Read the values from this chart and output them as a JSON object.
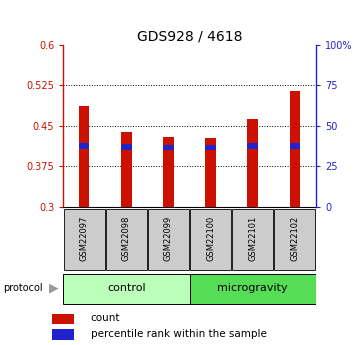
{
  "title": "GDS928 / 4618",
  "samples": [
    "GSM22097",
    "GSM22098",
    "GSM22099",
    "GSM22100",
    "GSM22101",
    "GSM22102"
  ],
  "red_values": [
    0.487,
    0.438,
    0.43,
    0.428,
    0.462,
    0.515
  ],
  "blue_values": [
    0.408,
    0.406,
    0.405,
    0.405,
    0.408,
    0.408
  ],
  "baseline": 0.3,
  "ylim_left": [
    0.3,
    0.6
  ],
  "ylim_right": [
    0,
    100
  ],
  "yticks_left": [
    0.3,
    0.375,
    0.45,
    0.525,
    0.6
  ],
  "ytick_labels_left": [
    "0.3",
    "0.375",
    "0.45",
    "0.525",
    "0.6"
  ],
  "yticks_right": [
    0,
    25,
    50,
    75,
    100
  ],
  "ytick_labels_right": [
    "0",
    "25",
    "50",
    "75",
    "100%"
  ],
  "bar_width": 0.25,
  "blue_bar_height": 0.01,
  "protocol_groups": [
    {
      "label": "control",
      "indices": [
        0,
        1,
        2
      ],
      "color": "#bbffbb"
    },
    {
      "label": "microgravity",
      "indices": [
        3,
        4,
        5
      ],
      "color": "#55dd55"
    }
  ],
  "red_color": "#cc1100",
  "blue_color": "#2222cc",
  "label_box_color": "#cccccc",
  "protocol_label": "protocol",
  "legend_entries": [
    "count",
    "percentile rank within the sample"
  ],
  "grid_yticks": [
    0.375,
    0.45,
    0.525
  ],
  "title_fontsize": 10,
  "tick_fontsize": 7,
  "bar_label_fontsize": 6,
  "proto_fontsize": 8
}
